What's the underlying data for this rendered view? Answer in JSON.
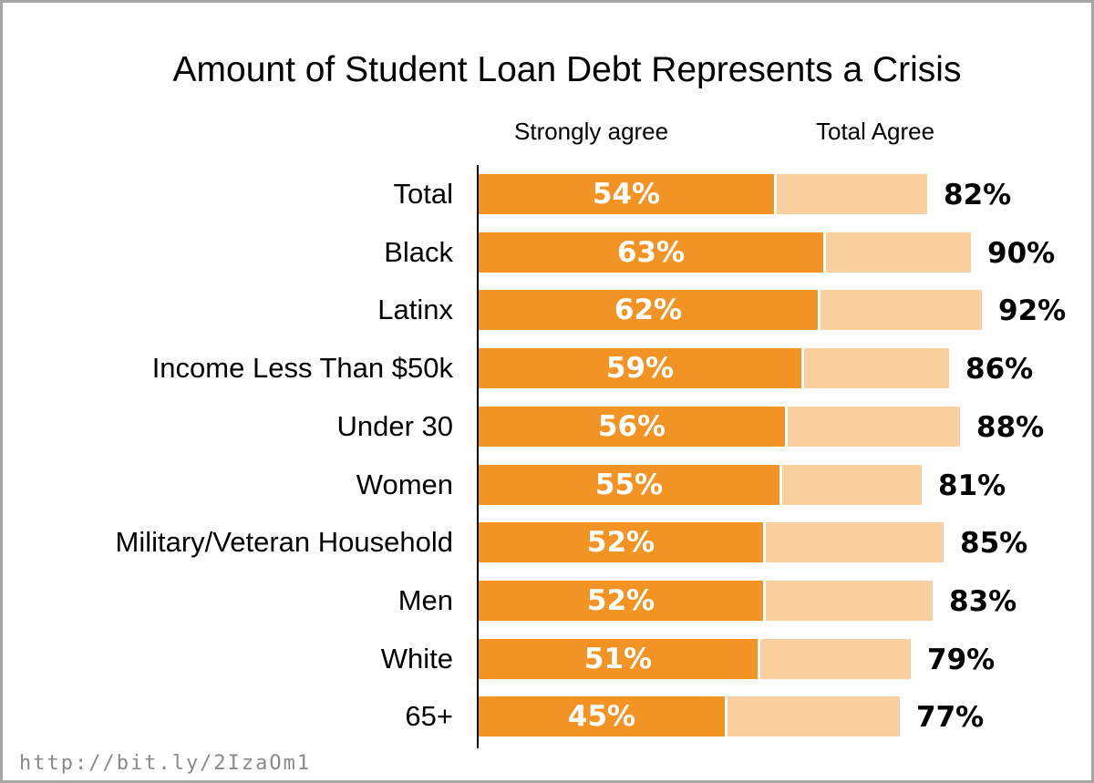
{
  "chart_data": {
    "type": "bar",
    "orientation": "horizontal",
    "title": "Amount of Student Loan Debt Represents a Crisis",
    "categories": [
      "Total",
      "Black",
      "Latinx",
      "Income Less Than $50k",
      "Under 30",
      "Women",
      "Military/Veteran Household",
      "Men",
      "White",
      "65+"
    ],
    "series": [
      {
        "name": "Strongly agree",
        "values": [
          54,
          63,
          62,
          59,
          56,
          55,
          52,
          52,
          51,
          45
        ],
        "color": "#f39324"
      },
      {
        "name": "Total Agree",
        "values": [
          82,
          90,
          92,
          86,
          88,
          81,
          85,
          83,
          79,
          77
        ],
        "color": "#fbd0a1"
      }
    ],
    "value_suffix": "%",
    "xlim": [
      0,
      100
    ],
    "grid": false,
    "legend": "column headers at top"
  },
  "source": "http://bit.ly/2IzaOm1"
}
